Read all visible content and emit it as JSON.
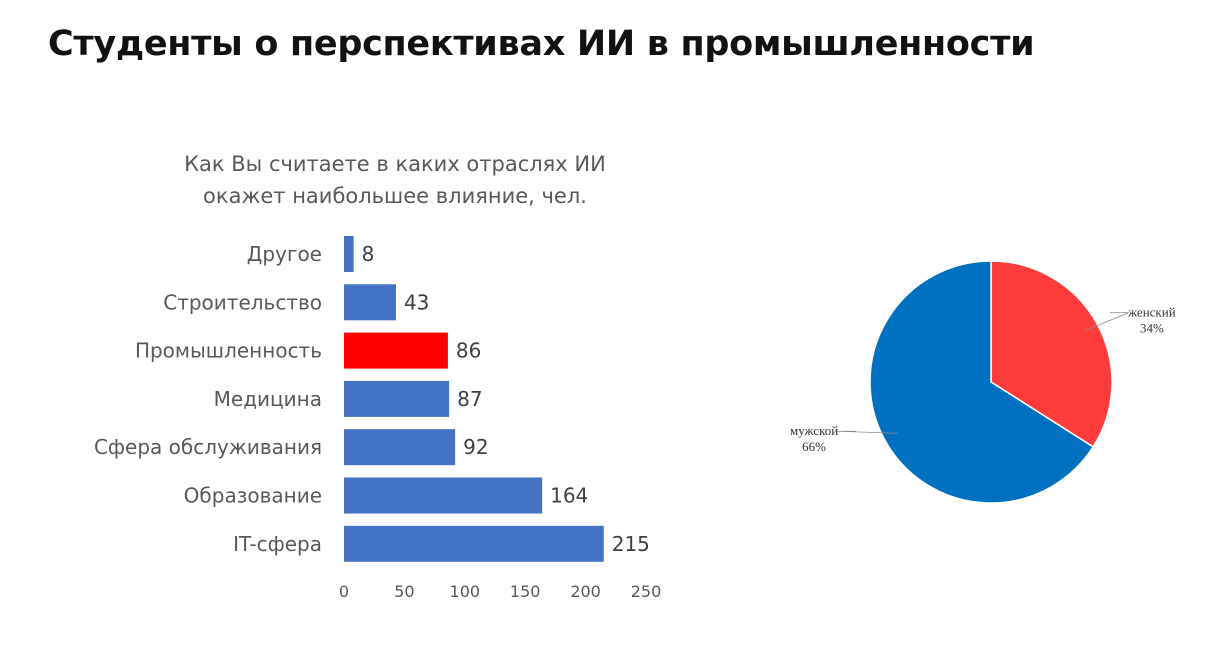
{
  "page_title": "Студенты о перспективах ИИ в промышленности",
  "chart_data": [
    {
      "type": "bar",
      "orientation": "horizontal",
      "title_lines": [
        "Как Вы считаете в каких отраслях ИИ",
        "окажет наибольшее влияние, чел."
      ],
      "categories": [
        "Другое",
        "Строительство",
        "Промышленность",
        "Медицина",
        "Сфера обслуживания",
        "Образование",
        "IT-сфера"
      ],
      "values": [
        8,
        43,
        86,
        87,
        92,
        164,
        215
      ],
      "highlight_index": 2,
      "xlim": [
        0,
        250
      ],
      "xticks": [
        0,
        50,
        100,
        150,
        200,
        250
      ],
      "colors": {
        "default": "#4472C4",
        "highlight": "#FF0000"
      },
      "grid": false
    },
    {
      "type": "pie",
      "slices": [
        {
          "name": "женский",
          "value": 34,
          "label": "34%",
          "color": "#FF3B3B"
        },
        {
          "name": "мужской",
          "value": 66,
          "label": "66%",
          "color": "#0070C0"
        }
      ],
      "start_angle_deg": 0,
      "direction": "clockwise"
    }
  ]
}
